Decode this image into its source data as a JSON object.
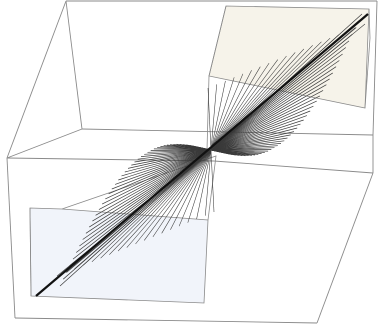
{
  "figure": {
    "kind": "3d-wireframe",
    "background_color": "#ffffff",
    "frame_color": "#8a8a8a",
    "panel_top_color": "#f6f3ea",
    "panel_bottom_color": "#f1f4fa",
    "fan_line_color": "#3a3a3a",
    "spine_color": "#111111",
    "fan_line_count": 46
  }
}
